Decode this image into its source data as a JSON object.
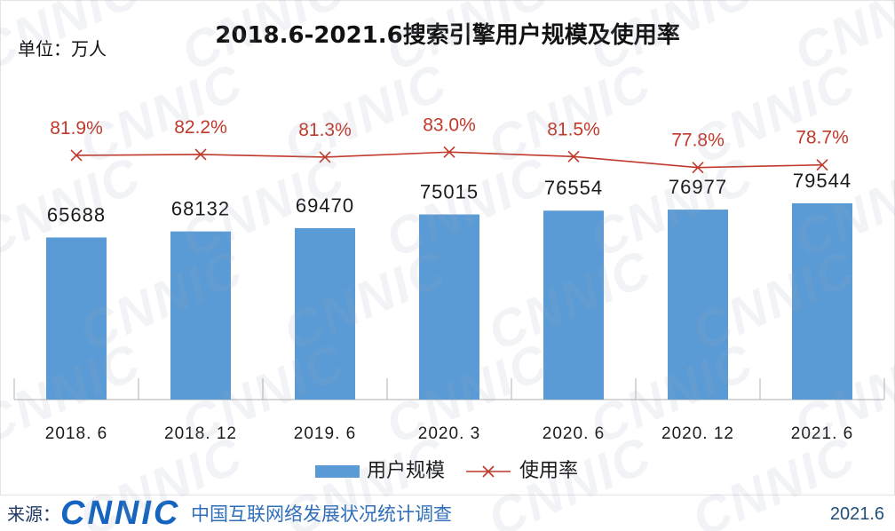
{
  "header": {
    "unit_label": "单位：万人"
  },
  "chart_data": {
    "type": "bar",
    "title": "2018.6-2021.6搜索引擎用户规模及使用率",
    "xlabel": "",
    "ylabel": "",
    "categories": [
      "2018. 6",
      "2018. 12",
      "2019. 6",
      "2020. 3",
      "2020. 6",
      "2020. 12",
      "2021. 6"
    ],
    "series": [
      {
        "name": "用户规模",
        "type": "bar",
        "values": [
          65688,
          68132,
          69470,
          75015,
          76554,
          76977,
          79544
        ],
        "color": "#5B9BD5"
      },
      {
        "name": "使用率",
        "type": "line",
        "values": [
          81.9,
          82.2,
          81.3,
          83.0,
          81.5,
          77.8,
          78.7
        ],
        "labels": [
          "81.9%",
          "82.2%",
          "81.3%",
          "83.0%",
          "81.5%",
          "77.8%",
          "78.7%"
        ],
        "color": "#C0392B"
      }
    ],
    "ylim": [
      0,
      145000
    ],
    "y2lim": [
      0,
      120
    ],
    "grid": false,
    "legend": "bottom"
  },
  "footer": {
    "source_label": "来源：",
    "logo_text": "CNNIC",
    "org_name": "中国互联网络发展状况统计调查",
    "date": "2021.6"
  },
  "watermark": {
    "text": "CNNIC"
  },
  "colors": {
    "axis": "#BFBFBF",
    "brand": "#1565C0"
  }
}
